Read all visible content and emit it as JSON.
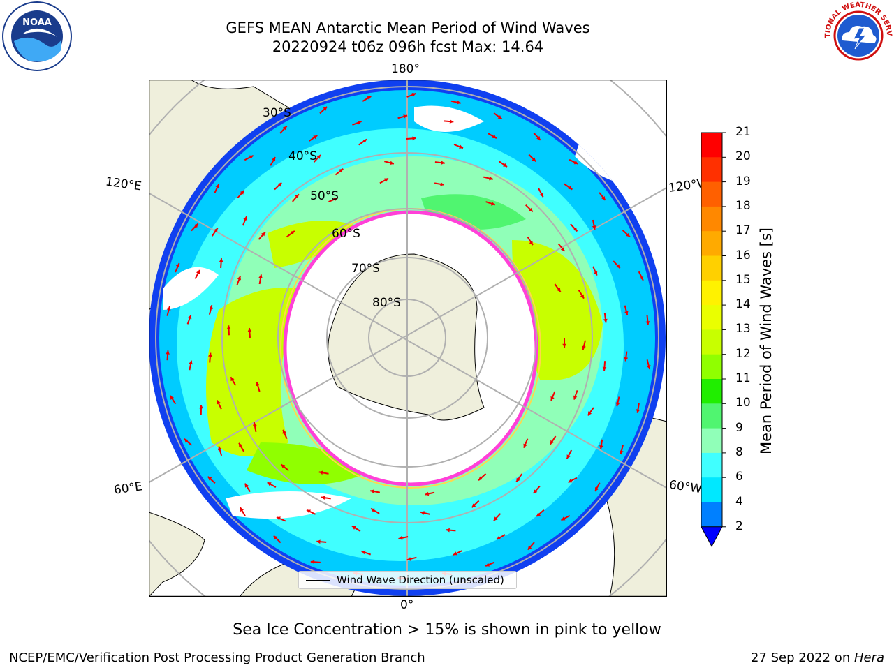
{
  "header": {
    "title_line1": "GEFS MEAN Antarctic Mean Period of Wind Waves",
    "title_line2": "20220924 t06z 096h fcst   Max: 14.64"
  },
  "logos": {
    "noaa_text": "NOAA",
    "nws_text": "NATIONAL WEATHER SERVICE"
  },
  "map": {
    "longitude_labels": [
      "180°",
      "120°E",
      "120°W",
      "60°E",
      "60°W",
      "0°"
    ],
    "latitude_labels": [
      "30°S",
      "40°S",
      "50°S",
      "60°S",
      "70°S",
      "80°S"
    ],
    "colors": {
      "land": "#efefdc",
      "ice_edge_pink": "#ff40d8",
      "ice_edge_yellow": "#ffd84a",
      "arrow": "#ee0000",
      "grid": "#b0b0b0"
    }
  },
  "legend": {
    "label": "Wind Wave Direction (unscaled)"
  },
  "colorbar": {
    "label": "Mean Period of Wind Waves [s]",
    "ticks": [
      "21",
      "20",
      "19",
      "18",
      "17",
      "16",
      "15",
      "14",
      "13",
      "12",
      "11",
      "10",
      "9",
      "8",
      "6",
      "4",
      "2"
    ],
    "colors": [
      "#ff0000",
      "#ff3000",
      "#ff6000",
      "#ff8800",
      "#ffaa00",
      "#ffd000",
      "#fff200",
      "#eaff00",
      "#c8ff00",
      "#90ff00",
      "#20ee00",
      "#50f570",
      "#90ffb8",
      "#40ffff",
      "#00e8ff",
      "#0080ff"
    ],
    "extend_color": "#0000ff"
  },
  "notes": {
    "sea_ice": "Sea Ice Concentration > 15% is shown in pink to yellow"
  },
  "footer": {
    "left": "NCEP/EMC/Verification Post Processing Product Generation Branch",
    "right_prefix": "27 Sep 2022 on ",
    "right_host": "Hera"
  }
}
